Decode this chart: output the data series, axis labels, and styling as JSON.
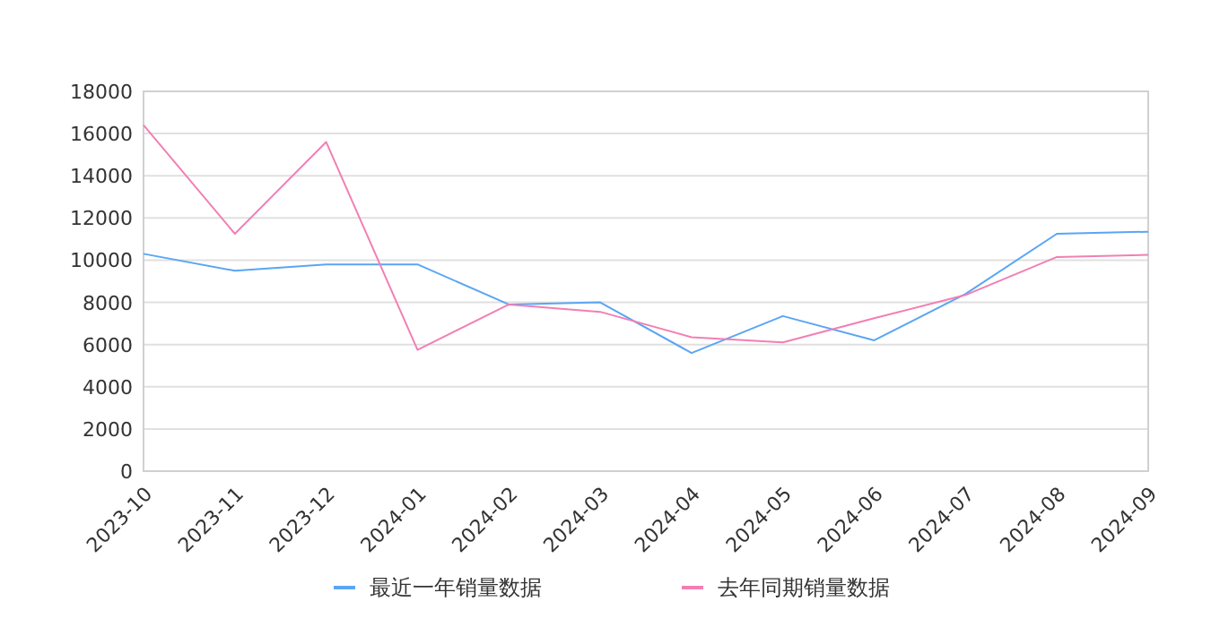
{
  "chart_data": {
    "type": "line",
    "categories": [
      "2023-10",
      "2023-11",
      "2023-12",
      "2024-01",
      "2024-02",
      "2024-03",
      "2024-04",
      "2024-05",
      "2024-06",
      "2024-07",
      "2024-08",
      "2024-09"
    ],
    "series": [
      {
        "name": "最近一年销量数据",
        "color": "#5aa5f5",
        "values": [
          10300,
          9500,
          9800,
          9800,
          7900,
          8000,
          5600,
          7350,
          6200,
          8400,
          11250,
          11350
        ]
      },
      {
        "name": "去年同期销量数据",
        "color": "#f27fb3",
        "values": [
          16400,
          11250,
          15600,
          5750,
          7900,
          7550,
          6350,
          6100,
          7250,
          8350,
          10150,
          10250
        ]
      }
    ],
    "ylim": [
      0,
      18000
    ],
    "yticks": [
      0,
      2000,
      4000,
      6000,
      8000,
      10000,
      12000,
      14000,
      16000,
      18000
    ],
    "grid": "y",
    "legend": "bottom",
    "marker": "none",
    "line_style": "solid"
  }
}
